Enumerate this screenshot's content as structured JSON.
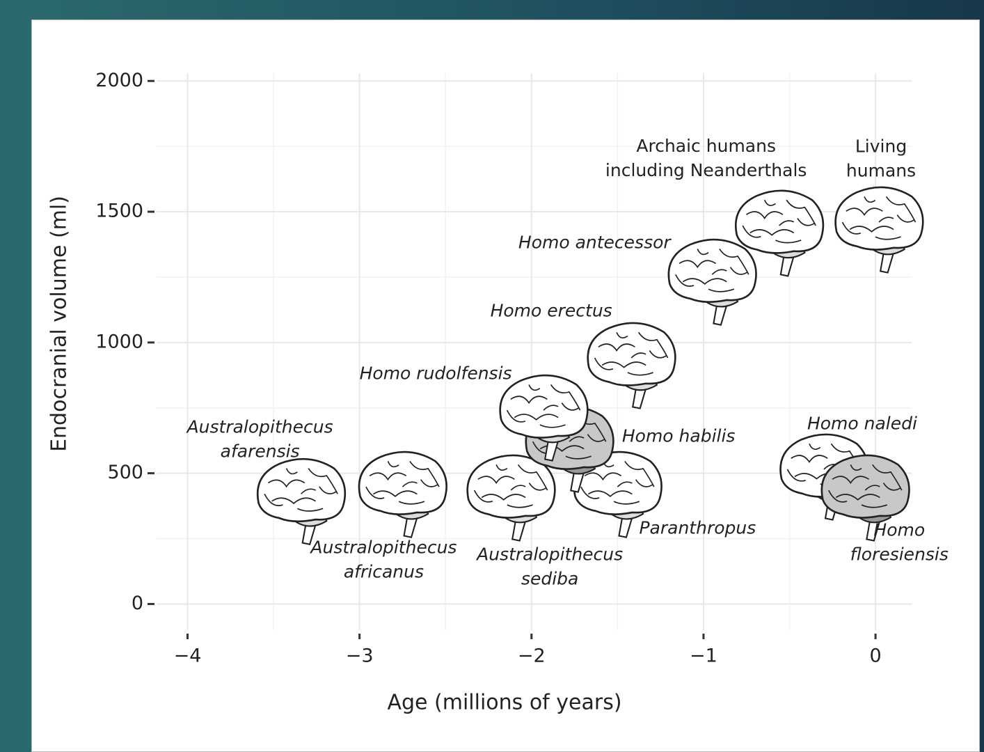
{
  "chart_data": {
    "type": "scatter",
    "x_label": "Age (millions of years)",
    "y_label": "Endocranial volume (ml)",
    "xlim": [
      -4.18,
      0.21
    ],
    "ylim": [
      -100,
      2030
    ],
    "xticks": [
      {
        "value": -4,
        "label": "−4"
      },
      {
        "value": -3,
        "label": "−3"
      },
      {
        "value": -2,
        "label": "−2"
      },
      {
        "value": -1,
        "label": "−1"
      },
      0
    ],
    "yticks": [
      0,
      500,
      1000,
      1500,
      2000
    ],
    "xminorticks": [
      -3.5,
      -2.5,
      -1.5,
      -0.5
    ],
    "yminorticks": [
      250,
      750,
      1250,
      1750
    ],
    "grid": true,
    "x": [
      -3.34,
      -2.75,
      -2.12,
      -1.5,
      -1.78,
      -1.93,
      -1.42,
      -0.95,
      -0.56,
      0.02,
      -0.3,
      -0.06
    ],
    "y": [
      407,
      434,
      421,
      434,
      607,
      727,
      927,
      1246,
      1433,
      1446,
      501,
      421
    ],
    "colors": [
      "#ffffff",
      "#ffffff",
      "#ffffff",
      "#ffffff",
      "#c8c8c8",
      "#ffffff",
      "#ffffff",
      "#ffffff",
      "#ffffff",
      "#ffffff",
      "#ffffff",
      "#c8c8c8"
    ],
    "labels": [
      [
        "Australopithecus",
        "afarensis"
      ],
      [
        "Australopithecus",
        "africanus"
      ],
      [
        "Australopithecus",
        "sediba"
      ],
      [
        "Paranthropus"
      ],
      [
        "Homo habilis"
      ],
      [
        "Homo rudolfensis"
      ],
      [
        "Homo erectus"
      ],
      [
        "Homo antecessor"
      ],
      [
        "Archaic humans",
        "including Neanderthals"
      ],
      [
        "Living",
        "humans"
      ],
      [
        "Homo naledi"
      ],
      [
        "Homo",
        "floresiensis"
      ]
    ],
    "label_italic": [
      true,
      true,
      true,
      true,
      true,
      true,
      true,
      true,
      false,
      false,
      true,
      true
    ]
  }
}
